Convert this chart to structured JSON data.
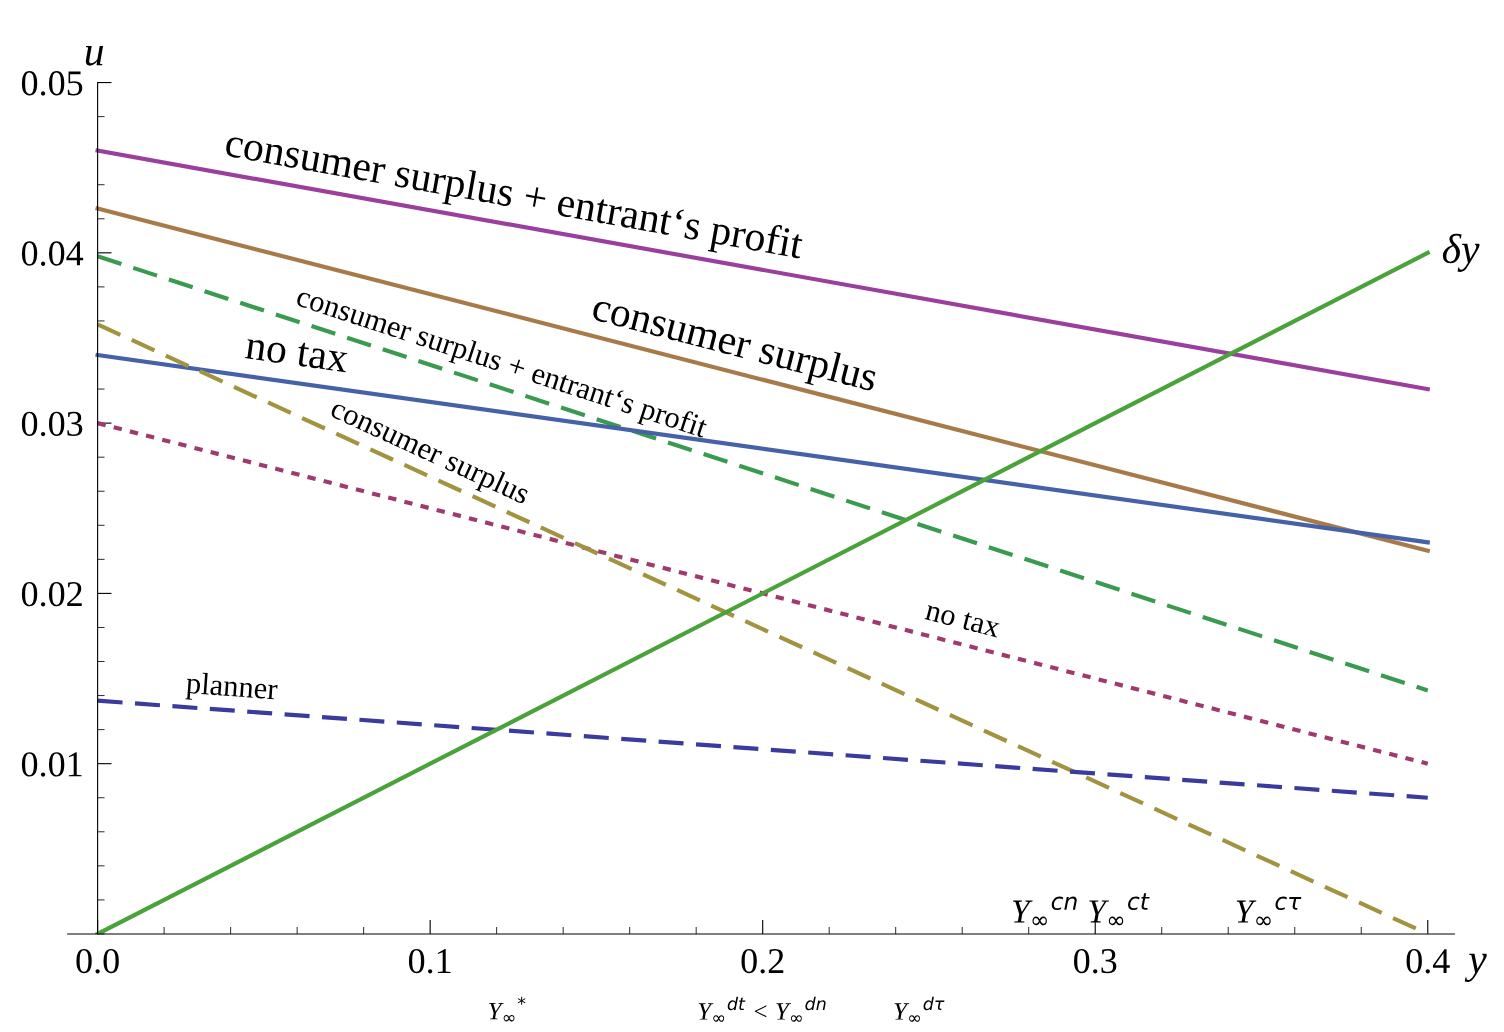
{
  "chart_data": {
    "type": "line",
    "xlabel": "y",
    "ylabel": "u",
    "x": [
      0.0,
      0.4
    ],
    "series": [
      {
        "color": "#9b3f9f",
        "line_style": "solid",
        "values": [
          0.046,
          0.032
        ]
      },
      {
        "color": "#a87a4a",
        "line_style": "solid",
        "values": [
          0.0426,
          0.0225
        ]
      },
      {
        "color": "#3a9a4f",
        "line_style": "dashed",
        "values": [
          0.0398,
          0.0143
        ]
      },
      {
        "color": "#4561a8",
        "line_style": "solid",
        "values": [
          0.034,
          0.023
        ]
      },
      {
        "color": "#a03a6d",
        "line_style": "dotted",
        "values": [
          0.03,
          0.01
        ]
      },
      {
        "color": "#a19340",
        "line_style": "dashed",
        "values": [
          0.0358,
          0.0
        ]
      },
      {
        "color": "#3a3a9f",
        "line_style": "dashed",
        "values": [
          0.0137,
          0.008
        ]
      },
      {
        "name": "δy",
        "color": "#4aa23a",
        "line_style": "solid",
        "values": [
          0.0,
          0.04
        ]
      }
    ],
    "xlim": [
      -0.009,
      0.408
    ],
    "ylim": [
      0,
      0.05
    ],
    "xticks": [
      {
        "value": 0,
        "label": "0.0"
      },
      0.1,
      0.2,
      0.3,
      0.4
    ],
    "yticks": [
      0.01,
      0.02,
      0.03,
      0.04,
      0.05
    ],
    "grid": false,
    "legend": false,
    "marker": "none",
    "annotations": [
      {
        "text": "consumer surplus + entrant‘s profit",
        "x": 0.124,
        "y": 0.0417
      },
      {
        "text": "consumer surplus",
        "x": 0.19,
        "y": 0.033
      },
      {
        "text": "no tax",
        "x": 0.059,
        "y": 0.0324
      },
      {
        "text": "consumer surplus + entrant‘s profit",
        "x": 0.12,
        "y": 0.0322
      },
      {
        "text": "consumer surplus",
        "x": 0.098,
        "y": 0.027
      },
      {
        "text": "no tax",
        "x": 0.259,
        "y": 0.0171
      },
      {
        "text": "planner",
        "x": 0.04,
        "y": 0.0131
      },
      "Y$_{∞}$$^{cn}$",
      "Y$_{∞}$$^{ct}$",
      "Y$_{∞}$$^{cτ}$",
      "Y$_{∞}$$^{*}$",
      "Y$_{∞}$$^{dt}$ < Y$_{∞}$$^{dn}$",
      "Y$_{∞}$$^{dτ}$"
    ]
  }
}
